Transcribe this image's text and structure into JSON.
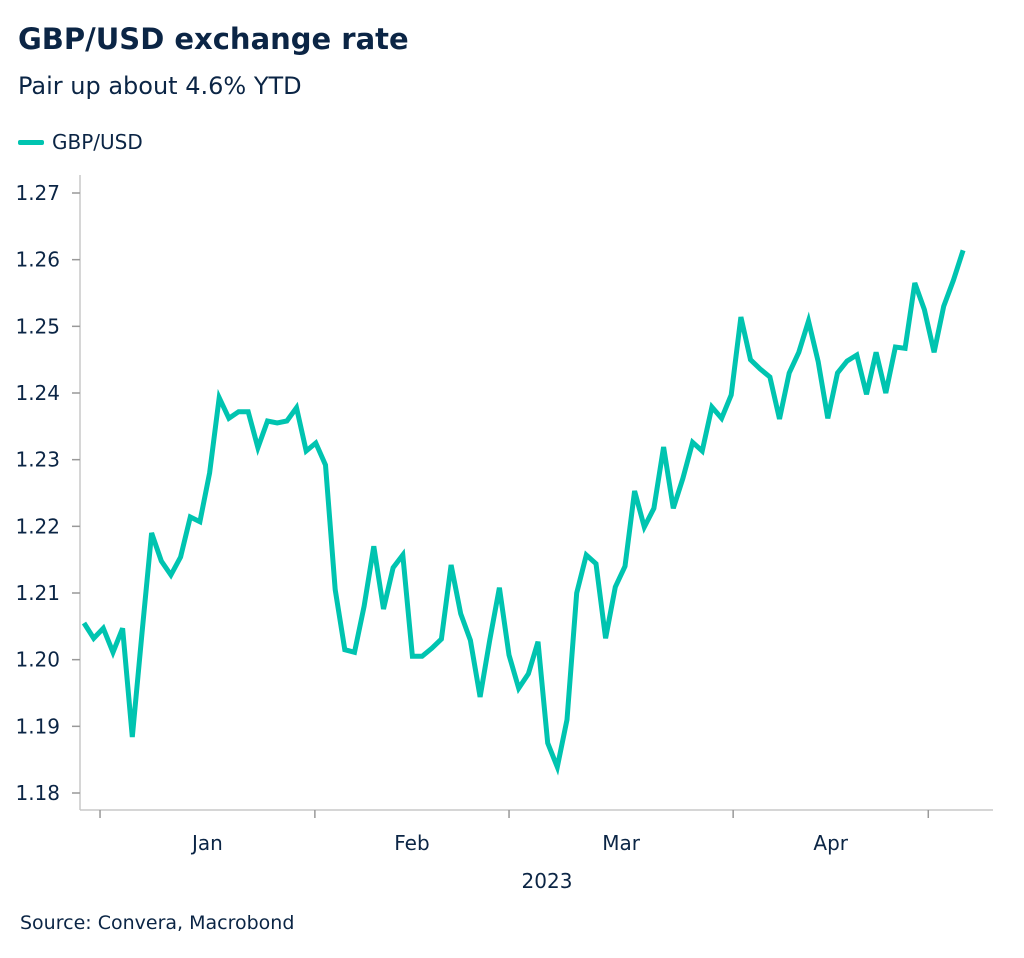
{
  "title": "GBP/USD exchange rate",
  "subtitle": "Pair up about 4.6% YTD",
  "source": "Source: Convera, Macrobond",
  "chart_data": {
    "type": "line",
    "title": "GBP/USD exchange rate",
    "subtitle": "Pair up about 4.6% YTD",
    "xlabel": "2023",
    "ylabel": "",
    "ylim": [
      1.18,
      1.27
    ],
    "yticks": [
      "1.18",
      "1.19",
      "1.20",
      "1.21",
      "1.22",
      "1.23",
      "1.24",
      "1.25",
      "1.26",
      "1.27"
    ],
    "xticks": [
      "Jan",
      "Feb",
      "Mar",
      "Apr"
    ],
    "grid": false,
    "legend": "top-left",
    "color": "#00c4b0",
    "series": [
      {
        "name": "GBP/USD",
        "values": [
          1.2055,
          1.2032,
          1.2047,
          1.2011,
          1.2047,
          1.1884,
          1.204,
          1.219,
          1.2148,
          1.2127,
          1.2154,
          1.2214,
          1.2207,
          1.228,
          1.2393,
          1.2362,
          1.2372,
          1.2372,
          1.2318,
          1.2358,
          1.2355,
          1.2358,
          1.2378,
          1.2313,
          1.2325,
          1.2292,
          1.2105,
          1.2015,
          1.2011,
          1.208,
          1.217,
          1.2076,
          1.2138,
          1.2157,
          1.2005,
          1.2005,
          1.2017,
          1.2031,
          1.2142,
          1.2069,
          1.2029,
          1.1944,
          1.2029,
          1.2108,
          1.2007,
          1.1957,
          1.1979,
          1.2027,
          1.1875,
          1.1839,
          1.191,
          1.21,
          1.2157,
          1.2144,
          1.2032,
          1.2109,
          1.214,
          1.2253,
          1.2199,
          1.2227,
          1.2319,
          1.2227,
          1.2272,
          1.2326,
          1.2313,
          1.2379,
          1.2362,
          1.2397,
          1.2514,
          1.245,
          1.2436,
          1.2424,
          1.2361,
          1.243,
          1.2461,
          1.2508,
          1.2447,
          1.2362,
          1.243,
          1.2448,
          1.2457,
          1.2398,
          1.2461,
          1.24,
          1.2469,
          1.2467,
          1.2565,
          1.2525,
          1.2461,
          1.253,
          1.2569,
          1.2614
        ]
      }
    ]
  }
}
